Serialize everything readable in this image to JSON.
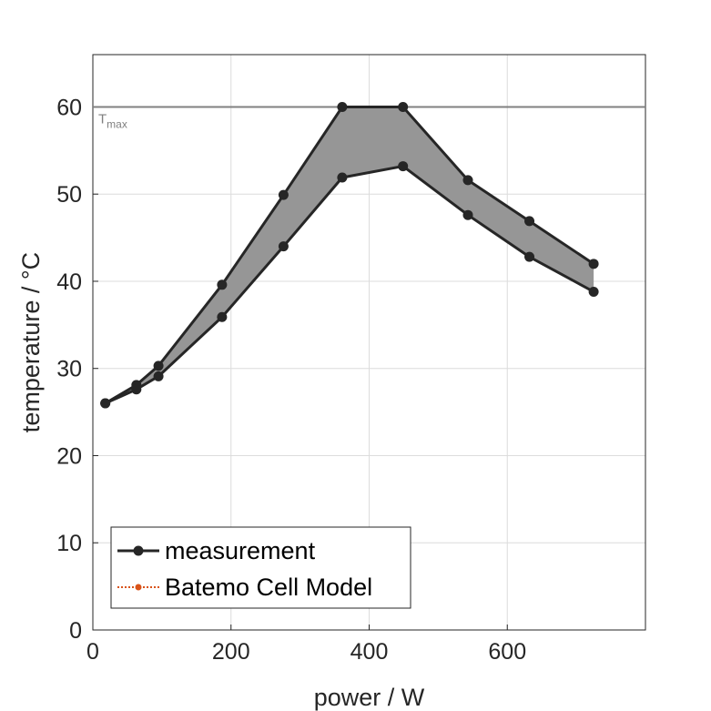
{
  "chart_data": {
    "type": "line",
    "xlabel": "power / W",
    "ylabel": "temperature / °C",
    "xlim": [
      0,
      800
    ],
    "ylim": [
      0,
      66
    ],
    "xticks": [
      0,
      200,
      400,
      600
    ],
    "yticks": [
      0,
      10,
      20,
      30,
      40,
      50,
      60
    ],
    "grid": true,
    "legend_position": "bottom-left",
    "threshold": {
      "value": 60,
      "label_main": "T",
      "label_sub": "max",
      "color": "#808080"
    },
    "band": {
      "lower_series": 1,
      "upper_series": 0,
      "color": "#969696"
    },
    "series": [
      {
        "name": "measurement",
        "color": "#262626",
        "style": "solid",
        "x": [
          18,
          63,
          95,
          187,
          276,
          361,
          449,
          543,
          632,
          725
        ],
        "y": [
          26.0,
          28.1,
          30.3,
          39.6,
          49.9,
          60.0,
          60.0,
          51.6,
          46.9,
          42.0
        ]
      },
      {
        "name": "",
        "color": "#262626",
        "style": "solid",
        "x": [
          18,
          63,
          95,
          187,
          276,
          361,
          449,
          543,
          632,
          725
        ],
        "y": [
          26.0,
          27.6,
          29.1,
          35.9,
          44.0,
          51.9,
          53.2,
          47.6,
          42.8,
          38.8
        ]
      }
    ],
    "legend": [
      {
        "label": "measurement",
        "color": "#262626",
        "style": "solid"
      },
      {
        "label": "Batemo Cell Model",
        "color": "#D95319",
        "style": "dotted"
      }
    ]
  }
}
